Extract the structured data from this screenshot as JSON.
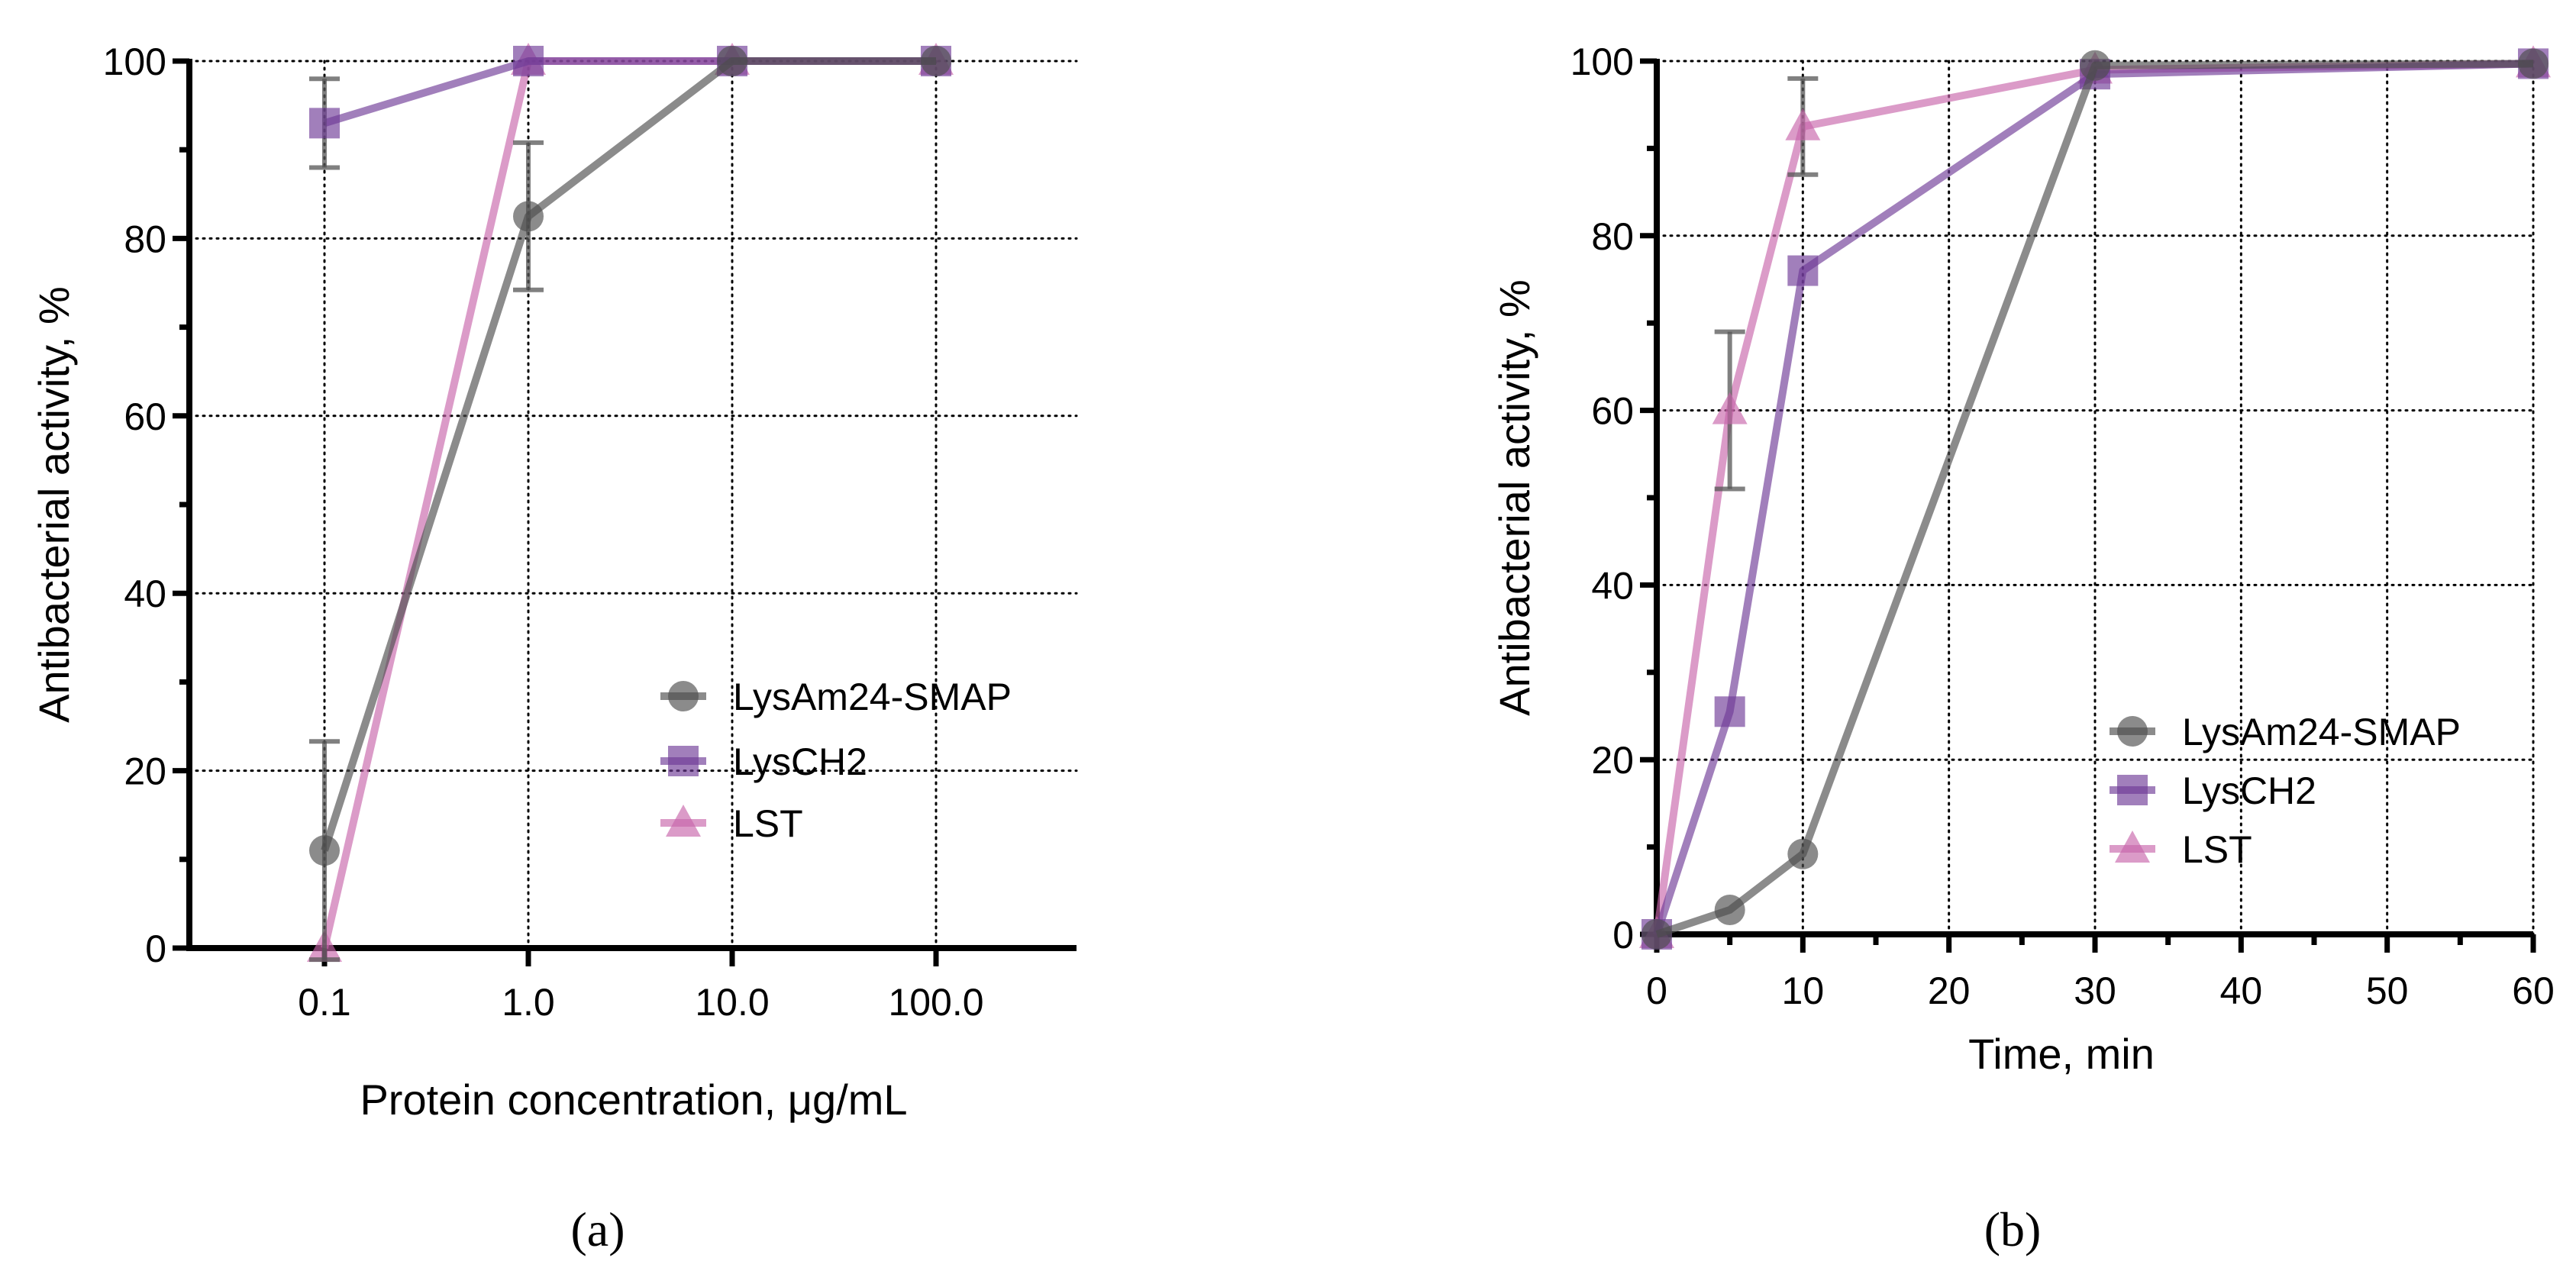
{
  "figure": {
    "panels": [
      {
        "id": "a",
        "label": "(a)"
      },
      {
        "id": "b",
        "label": "(b)"
      }
    ]
  },
  "colors": {
    "LysAm24-SMAP": "#4d4d4d",
    "LysCH2": "#6f3b96",
    "LST": "#c766ab",
    "errorbar": "#555555",
    "axis": "#000000",
    "grid": "#000000"
  },
  "chart_data": [
    {
      "panel": "(a)",
      "type": "line",
      "title": "",
      "xlabel": "Protein concentration, μg/mL",
      "ylabel": "Antibacterial activity, %",
      "xscale": "log",
      "x": [
        0.1,
        1.0,
        10.0,
        100.0
      ],
      "xtick_labels": [
        "0.1",
        "1.0",
        "10.0",
        "100.0"
      ],
      "ylim": [
        0,
        100
      ],
      "yticks": [
        0,
        20,
        40,
        60,
        80,
        100
      ],
      "grid": true,
      "legend_position": "lower right (inside)",
      "series": [
        {
          "name": "LysAm24-SMAP",
          "marker": "circle",
          "values": [
            11,
            82.5,
            100,
            100
          ],
          "error": [
            12.3,
            8.3,
            0,
            0
          ]
        },
        {
          "name": "LysCH2",
          "marker": "square",
          "values": [
            93,
            100,
            100,
            100
          ],
          "error": [
            5,
            0,
            0,
            0
          ]
        },
        {
          "name": "LST",
          "marker": "triangle",
          "values": [
            0,
            100,
            100,
            100
          ],
          "error": [
            0,
            0,
            0,
            0
          ]
        }
      ]
    },
    {
      "panel": "(b)",
      "type": "line",
      "title": "",
      "xlabel": "Time, min",
      "ylabel": "Antibacterial activity, %",
      "xscale": "linear",
      "xlim": [
        0,
        60
      ],
      "xticks": [
        0,
        10,
        20,
        30,
        40,
        50,
        60
      ],
      "ylim": [
        0,
        100
      ],
      "yticks": [
        0,
        20,
        40,
        60,
        80,
        100
      ],
      "grid": true,
      "legend_position": "lower right (inside)",
      "series": [
        {
          "name": "LysAm24-SMAP",
          "marker": "circle",
          "x": [
            0,
            5,
            10,
            30,
            60
          ],
          "values": [
            0,
            2.8,
            9.2,
            99.5,
            99.7
          ],
          "error": [
            0,
            0,
            0,
            0,
            0
          ]
        },
        {
          "name": "LysCH2",
          "marker": "square",
          "x": [
            0,
            5,
            10,
            30,
            60
          ],
          "values": [
            0,
            25.5,
            76,
            98.5,
            99.7
          ],
          "error": [
            0,
            0,
            0,
            0,
            0
          ]
        },
        {
          "name": "LST",
          "marker": "triangle",
          "x": [
            0,
            5,
            10,
            30,
            60
          ],
          "values": [
            0,
            60,
            92.5,
            99,
            99.7
          ],
          "error": [
            0,
            9,
            5.5,
            0,
            0
          ]
        }
      ]
    }
  ]
}
